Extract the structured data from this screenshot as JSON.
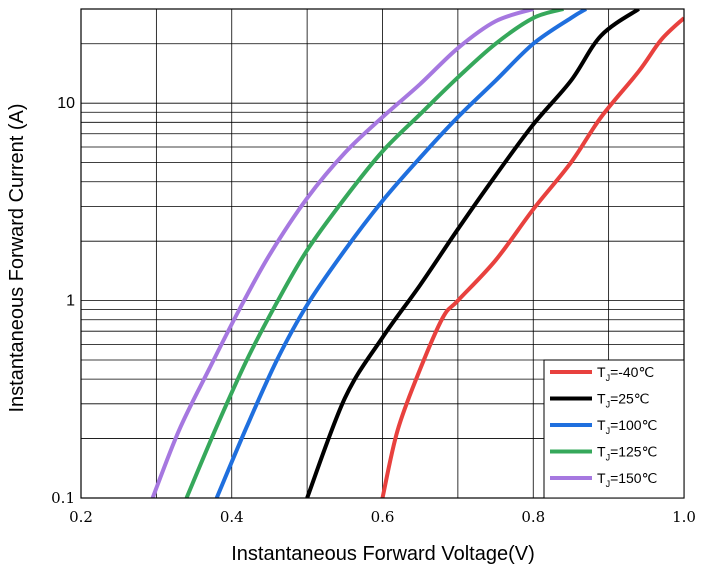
{
  "chart_data": {
    "type": "line",
    "xlabel": "Instantaneous Forward Voltage(V)",
    "ylabel": "Instantaneous Forward Current (A)",
    "xlim": [
      0.2,
      1.0
    ],
    "ylim": [
      0.1,
      30
    ],
    "y_scale": "log",
    "grid": true,
    "legend_position": "bottom-right",
    "x_ticks": [
      "0.2",
      "0.4",
      "0.6",
      "0.8",
      "1.0"
    ],
    "y_ticks": [
      {
        "value": 0.1,
        "label": "0.1"
      },
      {
        "value": 1,
        "label": "1"
      },
      {
        "value": 10,
        "label": "10"
      }
    ],
    "series": [
      {
        "name": "T",
        "sub": "J",
        "suffix": "=-40℃",
        "color": "#e8413e",
        "points": [
          [
            0.6,
            0.1
          ],
          [
            0.62,
            0.22
          ],
          [
            0.65,
            0.45
          ],
          [
            0.68,
            0.82
          ],
          [
            0.7,
            1.0
          ],
          [
            0.75,
            1.6
          ],
          [
            0.8,
            2.9
          ],
          [
            0.85,
            5.0
          ],
          [
            0.89,
            8.5
          ],
          [
            0.94,
            14.5
          ],
          [
            0.97,
            21
          ],
          [
            1.0,
            27
          ]
        ]
      },
      {
        "name": "T",
        "sub": "J",
        "suffix": "=25℃",
        "color": "#000000",
        "points": [
          [
            0.5,
            0.1
          ],
          [
            0.55,
            0.32
          ],
          [
            0.6,
            0.65
          ],
          [
            0.65,
            1.2
          ],
          [
            0.7,
            2.3
          ],
          [
            0.75,
            4.3
          ],
          [
            0.8,
            7.8
          ],
          [
            0.85,
            13
          ],
          [
            0.89,
            22
          ],
          [
            0.94,
            30
          ]
        ]
      },
      {
        "name": "T",
        "sub": "J",
        "suffix": "=100℃",
        "color": "#1f6fde",
        "points": [
          [
            0.38,
            0.1
          ],
          [
            0.42,
            0.23
          ],
          [
            0.46,
            0.5
          ],
          [
            0.5,
            0.95
          ],
          [
            0.55,
            1.8
          ],
          [
            0.6,
            3.2
          ],
          [
            0.65,
            5.3
          ],
          [
            0.7,
            8.5
          ],
          [
            0.75,
            13
          ],
          [
            0.8,
            20
          ],
          [
            0.85,
            27
          ],
          [
            0.87,
            30
          ]
        ]
      },
      {
        "name": "T",
        "sub": "J",
        "suffix": "=125℃",
        "color": "#36a85b",
        "points": [
          [
            0.34,
            0.1
          ],
          [
            0.38,
            0.23
          ],
          [
            0.42,
            0.5
          ],
          [
            0.46,
            0.98
          ],
          [
            0.5,
            1.8
          ],
          [
            0.55,
            3.3
          ],
          [
            0.6,
            5.7
          ],
          [
            0.65,
            8.8
          ],
          [
            0.7,
            13.5
          ],
          [
            0.75,
            20
          ],
          [
            0.8,
            27
          ],
          [
            0.84,
            30
          ]
        ]
      },
      {
        "name": "T",
        "sub": "J",
        "suffix": "=150℃",
        "color": "#a678e0",
        "points": [
          [
            0.295,
            0.1
          ],
          [
            0.33,
            0.22
          ],
          [
            0.37,
            0.45
          ],
          [
            0.41,
            0.9
          ],
          [
            0.45,
            1.7
          ],
          [
            0.5,
            3.3
          ],
          [
            0.55,
            5.6
          ],
          [
            0.6,
            8.5
          ],
          [
            0.65,
            12.5
          ],
          [
            0.7,
            19
          ],
          [
            0.75,
            26
          ],
          [
            0.8,
            30
          ]
        ]
      }
    ]
  }
}
